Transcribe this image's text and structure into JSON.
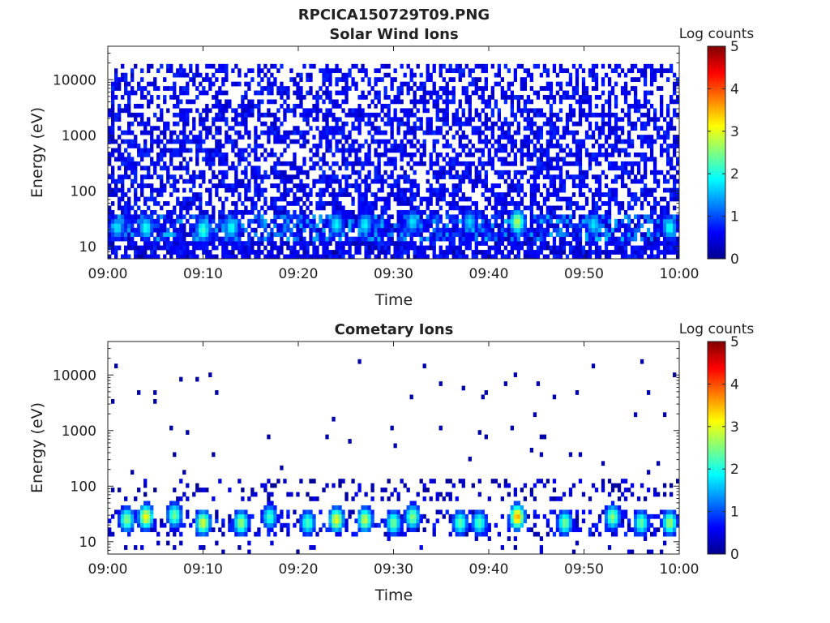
{
  "figure": {
    "title": "RPCICA150729T09.PNG"
  },
  "colorbar": {
    "label": "Log counts",
    "ticks": [
      "0",
      "1",
      "2",
      "3",
      "4",
      "5"
    ],
    "range": [
      0,
      5
    ],
    "colormap": "jet"
  },
  "chart_data": [
    {
      "type": "heatmap",
      "title": "Solar Wind Ions",
      "xlabel": "Time",
      "ylabel": "Energy (eV)",
      "x_range": [
        "09:00",
        "10:00"
      ],
      "x_ticks": [
        "09:00",
        "09:10",
        "09:20",
        "09:30",
        "09:40",
        "09:50",
        "10:00"
      ],
      "y_scale": "log",
      "y_range": [
        6,
        40000
      ],
      "y_ticks": [
        "10",
        "100",
        "1000",
        "10000"
      ],
      "y_tick_values": [
        10,
        100,
        1000,
        10000
      ],
      "z_label": "Log counts",
      "z_range": [
        0,
        5
      ],
      "description_of_values": {
        "background_energy_range_eV": [
          6,
          20000
        ],
        "background_log_counts": 0.3,
        "low_energy_band_eV": [
          12,
          40
        ],
        "low_energy_band_log_counts": 1.4
      },
      "peaks": [
        {
          "time": "09:01",
          "energy_eV": 22,
          "log_counts": 1.8
        },
        {
          "time": "09:04",
          "energy_eV": 22,
          "log_counts": 2.0
        },
        {
          "time": "09:10",
          "energy_eV": 20,
          "log_counts": 2.2
        },
        {
          "time": "09:13",
          "energy_eV": 22,
          "log_counts": 2.0
        },
        {
          "time": "09:24",
          "energy_eV": 25,
          "log_counts": 1.9
        },
        {
          "time": "09:27",
          "energy_eV": 25,
          "log_counts": 1.9
        },
        {
          "time": "09:32",
          "energy_eV": 28,
          "log_counts": 1.8
        },
        {
          "time": "09:38",
          "energy_eV": 28,
          "log_counts": 1.7
        },
        {
          "time": "09:43",
          "energy_eV": 28,
          "log_counts": 2.8
        },
        {
          "time": "09:51",
          "energy_eV": 25,
          "log_counts": 1.8
        },
        {
          "time": "09:59",
          "energy_eV": 22,
          "log_counts": 2.0
        }
      ]
    },
    {
      "type": "heatmap",
      "title": "Cometary Ions",
      "xlabel": "Time",
      "ylabel": "Energy (eV)",
      "x_range": [
        "09:00",
        "10:00"
      ],
      "x_ticks": [
        "09:00",
        "09:10",
        "09:20",
        "09:30",
        "09:40",
        "09:50",
        "10:00"
      ],
      "y_scale": "log",
      "y_range": [
        6,
        40000
      ],
      "y_ticks": [
        "10",
        "100",
        "1000",
        "10000"
      ],
      "y_tick_values": [
        10,
        100,
        1000,
        10000
      ],
      "z_label": "Log counts",
      "z_range": [
        0,
        5
      ],
      "description_of_values": {
        "sparse_counts_energy_range_eV": [
          150,
          20000
        ],
        "sparse_log_counts": 0.2,
        "medium_band_eV": [
          50,
          130
        ],
        "medium_band_log_counts": 0.5,
        "low_energy_band_eV": [
          12,
          40
        ],
        "low_energy_band_log_counts": 2.0
      },
      "peaks": [
        {
          "time": "09:02",
          "energy_eV": 25,
          "log_counts": 2.6
        },
        {
          "time": "09:04",
          "energy_eV": 28,
          "log_counts": 3.2
        },
        {
          "time": "09:07",
          "energy_eV": 30,
          "log_counts": 2.5
        },
        {
          "time": "09:10",
          "energy_eV": 22,
          "log_counts": 3.0
        },
        {
          "time": "09:14",
          "energy_eV": 22,
          "log_counts": 2.7
        },
        {
          "time": "09:17",
          "energy_eV": 28,
          "log_counts": 2.2
        },
        {
          "time": "09:21",
          "energy_eV": 22,
          "log_counts": 2.3
        },
        {
          "time": "09:24",
          "energy_eV": 25,
          "log_counts": 3.1
        },
        {
          "time": "09:27",
          "energy_eV": 25,
          "log_counts": 2.9
        },
        {
          "time": "09:30",
          "energy_eV": 22,
          "log_counts": 2.5
        },
        {
          "time": "09:32",
          "energy_eV": 28,
          "log_counts": 2.6
        },
        {
          "time": "09:37",
          "energy_eV": 22,
          "log_counts": 2.4
        },
        {
          "time": "09:39",
          "energy_eV": 22,
          "log_counts": 2.3
        },
        {
          "time": "09:43",
          "energy_eV": 28,
          "log_counts": 3.6
        },
        {
          "time": "09:48",
          "energy_eV": 22,
          "log_counts": 2.5
        },
        {
          "time": "09:53",
          "energy_eV": 28,
          "log_counts": 2.6
        },
        {
          "time": "09:56",
          "energy_eV": 22,
          "log_counts": 2.4
        },
        {
          "time": "09:59",
          "energy_eV": 22,
          "log_counts": 2.7
        }
      ]
    }
  ]
}
